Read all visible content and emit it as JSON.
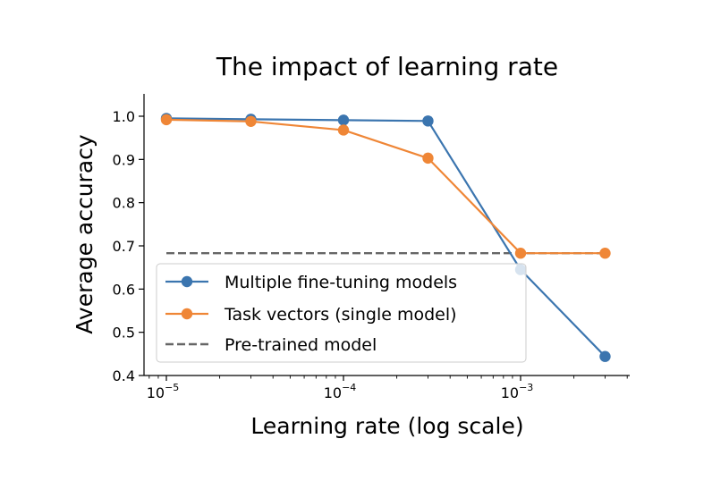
{
  "chart_data": {
    "type": "line",
    "title": "The impact of learning rate",
    "xlabel": "Learning rate (log scale)",
    "ylabel": "Average accuracy",
    "xscale": "log",
    "x_ticks": [
      {
        "value": 1e-05,
        "base": "10",
        "exp": "−5"
      },
      {
        "value": 0.0001,
        "base": "10",
        "exp": "−4"
      },
      {
        "value": 0.001,
        "base": "10",
        "exp": "−3"
      }
    ],
    "ylim": [
      0.4,
      1.05
    ],
    "y_ticks": [
      "0.4",
      "0.5",
      "0.6",
      "0.7",
      "0.8",
      "0.9",
      "1.0"
    ],
    "grid": false,
    "legend_position": "lower-left",
    "series": [
      {
        "name": "Multiple fine-tuning models",
        "color": "#3b75af",
        "style": "solid-marker",
        "x": [
          1e-05,
          3e-05,
          0.0001,
          0.0003,
          0.001,
          0.003
        ],
        "y": [
          0.995,
          0.993,
          0.991,
          0.989,
          0.645,
          0.444
        ]
      },
      {
        "name": "Task vectors (single model)",
        "color": "#ef8636",
        "style": "solid-marker",
        "x": [
          1e-05,
          3e-05,
          0.0001,
          0.0003,
          0.001,
          0.003
        ],
        "y": [
          0.992,
          0.988,
          0.968,
          0.903,
          0.683,
          0.683
        ]
      },
      {
        "name": "Pre-trained model",
        "color": "#666666",
        "style": "dashed",
        "x": [
          1e-05,
          0.003
        ],
        "y": [
          0.683,
          0.683
        ]
      }
    ]
  }
}
